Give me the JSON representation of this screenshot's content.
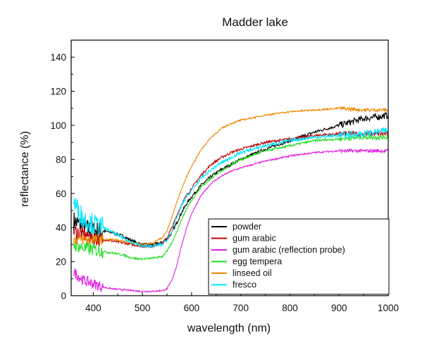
{
  "chart_data": {
    "type": "line",
    "title": "Madder lake",
    "xlabel": "wavelength (nm)",
    "ylabel": "reflectance (%)",
    "xlim": [
      355,
      1000
    ],
    "ylim": [
      0,
      150
    ],
    "xticks": [
      400,
      500,
      600,
      700,
      800,
      900,
      1000
    ],
    "yticks": [
      0,
      20,
      40,
      60,
      80,
      100,
      120,
      140
    ],
    "grid": false,
    "legend_position": "bottom-right",
    "series": [
      {
        "name": "powder",
        "color": "#000000",
        "noise": 1.5,
        "x": [
          360,
          380,
          400,
          420,
          440,
          460,
          480,
          500,
          520,
          540,
          550,
          560,
          570,
          580,
          590,
          600,
          620,
          640,
          660,
          680,
          700,
          750,
          800,
          850,
          900,
          950,
          980,
          1000
        ],
        "y": [
          44,
          40,
          38,
          38,
          37,
          35,
          32,
          30,
          30,
          31,
          33,
          37,
          43,
          49,
          54,
          58,
          65,
          70,
          74,
          77,
          80,
          86,
          91,
          96,
          100,
          104,
          105,
          106
        ]
      },
      {
        "name": "gum arabic",
        "color": "#c00000",
        "noise": 1.2,
        "x": [
          360,
          380,
          400,
          420,
          440,
          460,
          480,
          500,
          520,
          540,
          550,
          560,
          570,
          580,
          590,
          600,
          620,
          640,
          660,
          680,
          700,
          750,
          800,
          850,
          900,
          950,
          1000
        ],
        "y": [
          38,
          36,
          34,
          33,
          32,
          31,
          30,
          29,
          29,
          31,
          34,
          40,
          47,
          54,
          59,
          63,
          71,
          77,
          81,
          84,
          86,
          90,
          92,
          94,
          95,
          95,
          95
        ]
      },
      {
        "name": "gum arabic (reflection probe)",
        "color": "#e020e0",
        "noise": 0.8,
        "x": [
          360,
          380,
          400,
          420,
          440,
          460,
          480,
          500,
          520,
          540,
          550,
          560,
          570,
          580,
          590,
          600,
          620,
          640,
          660,
          680,
          700,
          750,
          800,
          850,
          900,
          950,
          1000
        ],
        "y": [
          14,
          9,
          7,
          5,
          4,
          3.5,
          3,
          2.5,
          2.5,
          3,
          4,
          9,
          18,
          30,
          40,
          48,
          59,
          66,
          70,
          73,
          75,
          79,
          82,
          84,
          85,
          85,
          85
        ]
      },
      {
        "name": "egg tempera",
        "color": "#22dd22",
        "noise": 1.0,
        "x": [
          360,
          380,
          400,
          420,
          440,
          460,
          480,
          500,
          520,
          540,
          550,
          560,
          570,
          580,
          590,
          600,
          620,
          640,
          660,
          680,
          700,
          750,
          800,
          850,
          900,
          950,
          1000
        ],
        "y": [
          30,
          28,
          27,
          26,
          25,
          24,
          22,
          21.5,
          22,
          23,
          26,
          31,
          38,
          45,
          51,
          56,
          64,
          69,
          73,
          77,
          80,
          85,
          88,
          91,
          92,
          93,
          93
        ]
      },
      {
        "name": "linseed oil",
        "color": "#ee8800",
        "noise": 0.8,
        "x": [
          360,
          380,
          400,
          420,
          440,
          460,
          480,
          500,
          520,
          540,
          550,
          560,
          570,
          580,
          590,
          600,
          620,
          640,
          660,
          680,
          700,
          750,
          800,
          850,
          900,
          950,
          1000
        ],
        "y": [
          33,
          33,
          33,
          33,
          33,
          32,
          31,
          30,
          31,
          34,
          38,
          46,
          55,
          63,
          70,
          76,
          86,
          93,
          98,
          101,
          103,
          106,
          108,
          109,
          110,
          109,
          109
        ]
      },
      {
        "name": "fresco",
        "color": "#00e5ff",
        "noise": 1.6,
        "x": [
          360,
          380,
          400,
          420,
          440,
          460,
          480,
          500,
          520,
          540,
          550,
          560,
          570,
          580,
          590,
          600,
          620,
          640,
          660,
          680,
          700,
          750,
          800,
          850,
          900,
          950,
          1000
        ],
        "y": [
          55,
          45,
          42,
          40,
          37,
          34,
          31,
          29,
          29,
          30,
          33,
          38,
          46,
          53,
          58,
          62,
          69,
          74,
          78,
          81,
          84,
          88,
          91,
          93,
          94,
          95,
          97
        ]
      }
    ]
  }
}
